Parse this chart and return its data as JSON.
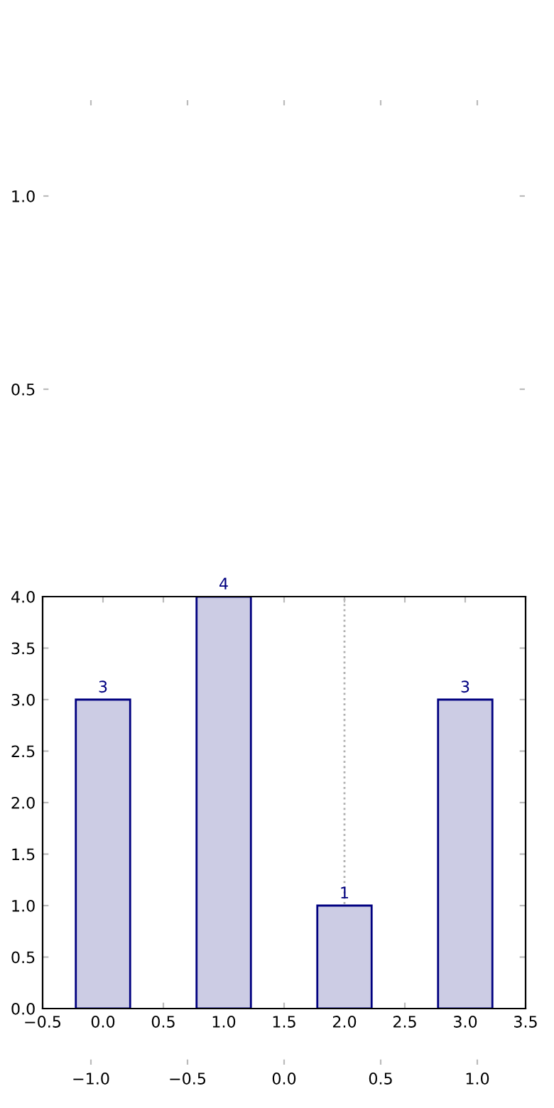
{
  "chart_data": [
    {
      "type": "scatter",
      "xlim": [
        -1.25,
        1.25
      ],
      "ylim": [
        -1.25,
        1.25
      ],
      "xticks": [
        {
          "value": -1.0,
          "label": "−1.0"
        },
        {
          "value": -0.5,
          "label": "−0.5"
        },
        {
          "value": 0.0,
          "label": "0.0"
        },
        {
          "value": 0.5,
          "label": "0.5"
        },
        {
          "value": 1.0,
          "label": "1.0"
        }
      ],
      "yticks": [
        {
          "value": 0.5,
          "label": "0.5"
        },
        {
          "value": 1.0,
          "label": "1.0"
        }
      ]
    },
    {
      "type": "bar",
      "x": [
        0,
        1,
        2,
        3
      ],
      "values": [
        3,
        4,
        1,
        3
      ],
      "color": "#cccce4",
      "data_labels": true,
      "xlim": [
        -0.5,
        3.5
      ],
      "ylim": [
        0,
        4
      ],
      "xticks": [
        {
          "value": -0.5,
          "label": "−0.5"
        },
        {
          "value": 0,
          "label": "0.0"
        },
        0.5,
        {
          "value": 1,
          "label": "1.0"
        },
        1.5,
        {
          "value": 2,
          "label": "2.0"
        },
        2.5,
        {
          "value": 3,
          "label": "3.0"
        },
        3.5
      ],
      "yticks": [
        {
          "value": 0,
          "label": "0.0"
        },
        0.5,
        {
          "value": 1,
          "label": "1.0"
        },
        1.5,
        {
          "value": 2,
          "label": "2.0"
        },
        2.5,
        {
          "value": 3,
          "label": "3.0"
        },
        3.5,
        {
          "value": 4,
          "label": "4.0"
        }
      ],
      "ref_lines": [
        {
          "axis": "x",
          "value": 2,
          "color": "#b0b0b0",
          "line_style": "dotted"
        }
      ]
    }
  ]
}
